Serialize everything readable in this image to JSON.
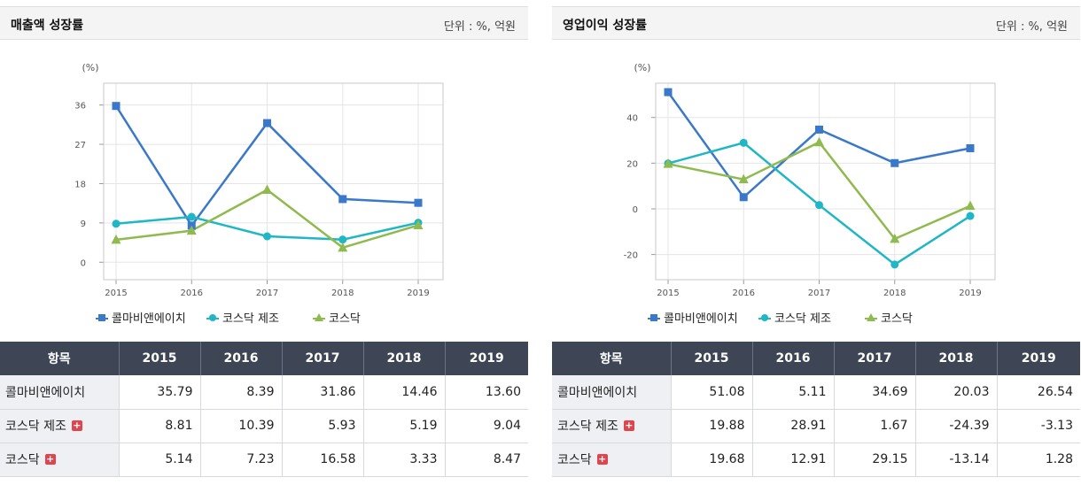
{
  "panels": [
    {
      "title": "매출액 성장률",
      "unit": "단위 : %, 억원",
      "header_label": "항목",
      "years": [
        "2015",
        "2016",
        "2017",
        "2018",
        "2019"
      ],
      "rows": [
        {
          "label": "콜마비앤에이치",
          "has_plus": false,
          "values": [
            "35.79",
            "8.39",
            "31.86",
            "14.46",
            "13.60"
          ]
        },
        {
          "label": "코스닥 제조",
          "has_plus": true,
          "values": [
            "8.81",
            "10.39",
            "5.93",
            "5.19",
            "9.04"
          ]
        },
        {
          "label": "코스닥",
          "has_plus": true,
          "values": [
            "5.14",
            "7.23",
            "16.58",
            "3.33",
            "8.47"
          ]
        }
      ]
    },
    {
      "title": "영업이익 성장률",
      "unit": "단위 : %, 억원",
      "header_label": "항목",
      "years": [
        "2015",
        "2016",
        "2017",
        "2018",
        "2019"
      ],
      "rows": [
        {
          "label": "콜마비앤에이치",
          "has_plus": false,
          "values": [
            "51.08",
            "5.11",
            "34.69",
            "20.03",
            "26.54"
          ]
        },
        {
          "label": "코스닥 제조",
          "has_plus": true,
          "values": [
            "19.88",
            "28.91",
            "1.67",
            "-24.39",
            "-3.13"
          ]
        },
        {
          "label": "코스닥",
          "has_plus": true,
          "values": [
            "19.68",
            "12.91",
            "29.15",
            "-13.14",
            "1.28"
          ]
        }
      ]
    }
  ],
  "colors": {
    "series1": "#3a78c9",
    "series2": "#1fb6c6",
    "series3": "#8fba4e",
    "negative": "#d41f1f",
    "header_bg": "#3e4656"
  },
  "chart_data": [
    {
      "type": "line",
      "title": "매출액 성장률",
      "ylabel": "(%)",
      "xlabel": "",
      "x": [
        "2015",
        "2016",
        "2017",
        "2018",
        "2019"
      ],
      "yticks": [
        0,
        9,
        18,
        27,
        36
      ],
      "ylim": [
        -4,
        41
      ],
      "grid": true,
      "legend": "bottom",
      "series": [
        {
          "name": "콜마비앤에이치",
          "values": [
            35.79,
            8.39,
            31.86,
            14.46,
            13.6
          ],
          "marker": "square",
          "color": "#3a78c9"
        },
        {
          "name": "코스닥 제조",
          "values": [
            8.81,
            10.39,
            5.93,
            5.19,
            9.04
          ],
          "marker": "circle",
          "color": "#1fb6c6"
        },
        {
          "name": "코스닥",
          "values": [
            5.14,
            7.23,
            16.58,
            3.33,
            8.47
          ],
          "marker": "triangle",
          "color": "#8fba4e"
        }
      ]
    },
    {
      "type": "line",
      "title": "영업이익 성장률",
      "ylabel": "(%)",
      "xlabel": "",
      "x": [
        "2015",
        "2016",
        "2017",
        "2018",
        "2019"
      ],
      "yticks": [
        -20,
        0,
        20,
        40
      ],
      "ylim": [
        -31,
        55
      ],
      "grid": true,
      "legend": "bottom",
      "series": [
        {
          "name": "콜마비앤에이치",
          "values": [
            51.08,
            5.11,
            34.69,
            20.03,
            26.54
          ],
          "marker": "square",
          "color": "#3a78c9"
        },
        {
          "name": "코스닥 제조",
          "values": [
            19.88,
            28.91,
            1.67,
            -24.39,
            -3.13
          ],
          "marker": "circle",
          "color": "#1fb6c6"
        },
        {
          "name": "코스닥",
          "values": [
            19.68,
            12.91,
            29.15,
            -13.14,
            1.28
          ],
          "marker": "triangle",
          "color": "#8fba4e"
        }
      ]
    }
  ]
}
